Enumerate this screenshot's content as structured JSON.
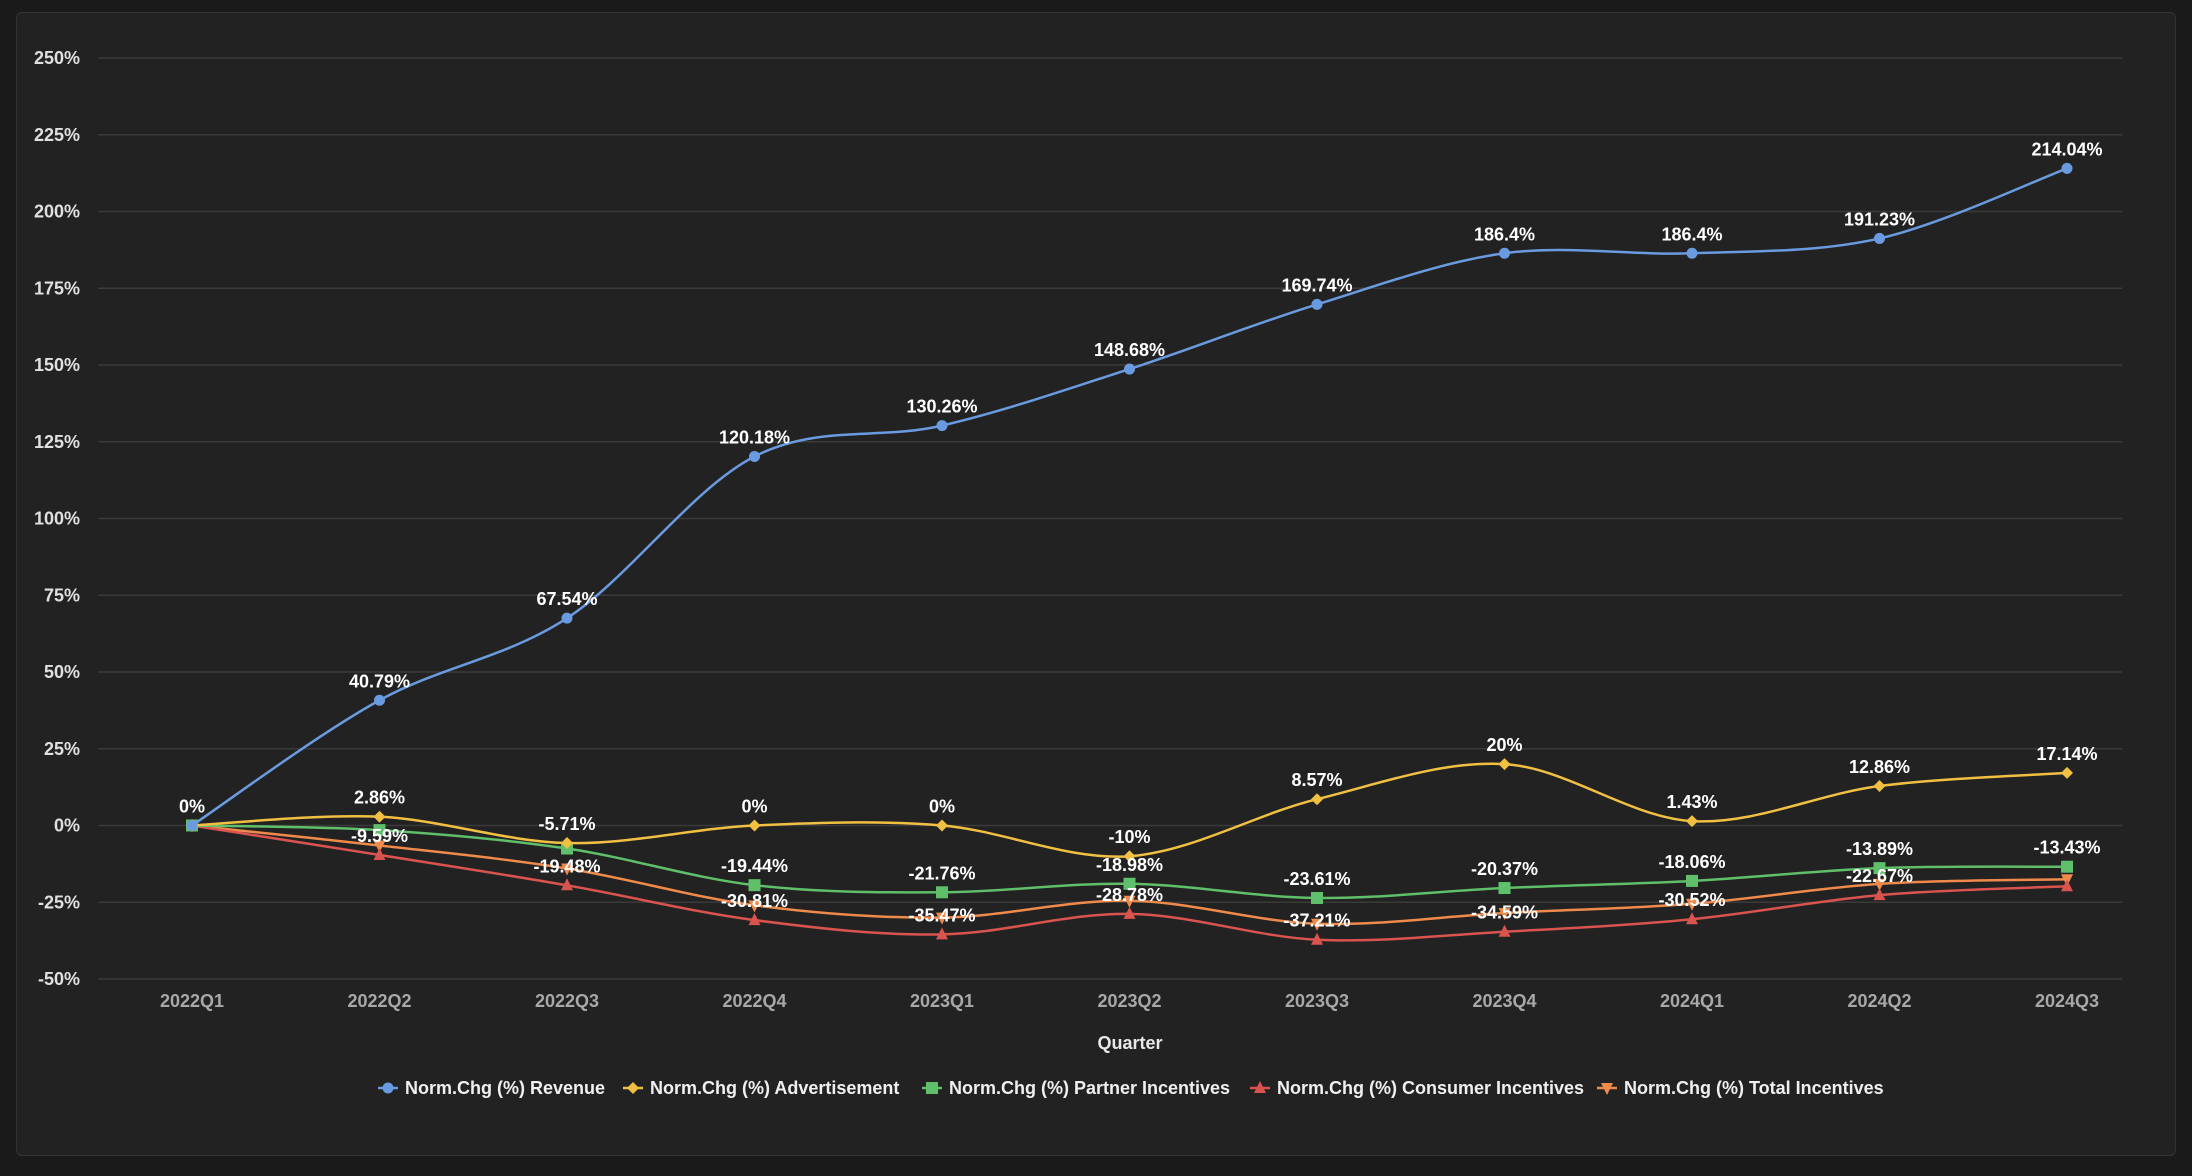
{
  "chart_data": {
    "type": "line",
    "title": "",
    "xlabel": "Quarter",
    "ylabel": "",
    "ylim": [
      -50,
      250
    ],
    "yticks": [
      -50,
      -25,
      0,
      25,
      50,
      75,
      100,
      125,
      150,
      175,
      200,
      225,
      250
    ],
    "ytick_labels": [
      "-50%",
      "-25%",
      "0%",
      "25%",
      "50%",
      "75%",
      "100%",
      "125%",
      "150%",
      "175%",
      "200%",
      "225%",
      "250%"
    ],
    "grid": true,
    "legend_position": "bottom-center",
    "categories": [
      "2022Q1",
      "2022Q2",
      "2022Q3",
      "2022Q4",
      "2023Q1",
      "2023Q2",
      "2023Q3",
      "2023Q4",
      "2024Q1",
      "2024Q2",
      "2024Q3"
    ],
    "series": [
      {
        "name": "Norm.Chg (%) Revenue",
        "color": "#6a9be0",
        "marker": "circle",
        "values": [
          0,
          40.79,
          67.54,
          120.18,
          130.26,
          148.68,
          169.74,
          186.4,
          186.4,
          191.23,
          214.04
        ],
        "labels": [
          "0%",
          "40.79%",
          "67.54%",
          "120.18%",
          "130.26%",
          "148.68%",
          "169.74%",
          "186.4%",
          "186.4%",
          "191.23%",
          "214.04%"
        ],
        "label_show": [
          true,
          true,
          true,
          true,
          true,
          true,
          true,
          true,
          true,
          true,
          true
        ]
      },
      {
        "name": "Norm.Chg (%) Advertisement",
        "color": "#f1c043",
        "marker": "diamond",
        "values": [
          0,
          2.86,
          -5.71,
          0,
          0,
          -10,
          8.57,
          20,
          1.43,
          12.86,
          17.14
        ],
        "labels": [
          "0%",
          "2.86%",
          "-5.71%",
          "0%",
          "0%",
          "-10%",
          "8.57%",
          "20%",
          "1.43%",
          "12.86%",
          "17.14%"
        ],
        "label_show": [
          false,
          true,
          true,
          true,
          true,
          true,
          true,
          true,
          true,
          true,
          true
        ]
      },
      {
        "name": "Norm.Chg (%) Partner Incentives",
        "color": "#5fbf6a",
        "marker": "square",
        "values": [
          0,
          -1.5,
          -7.5,
          -19.44,
          -21.76,
          -18.98,
          -23.61,
          -20.37,
          -18.06,
          -13.89,
          -13.43
        ],
        "labels": [
          "",
          "",
          "",
          "-19.44%",
          "-21.76%",
          "-18.98%",
          "-23.61%",
          "-20.37%",
          "-18.06%",
          "-13.89%",
          "-13.43%"
        ],
        "label_show": [
          false,
          false,
          false,
          true,
          true,
          true,
          true,
          true,
          true,
          true,
          true
        ]
      },
      {
        "name": "Norm.Chg (%) Consumer Incentives",
        "color": "#d9534f",
        "marker": "triangle",
        "values": [
          0,
          -9.59,
          -19.48,
          -30.81,
          -35.47,
          -28.78,
          -37.21,
          -34.59,
          -30.52,
          -22.67,
          -19.8
        ],
        "labels": [
          "",
          "-9.59%",
          "-19.48%",
          "-30.81%",
          "-35.47%",
          "-28.78%",
          "-37.21%",
          "-34.59%",
          "-30.52%",
          "-22.67%",
          ""
        ],
        "label_show": [
          false,
          true,
          true,
          true,
          true,
          true,
          true,
          true,
          true,
          true,
          false
        ]
      },
      {
        "name": "Norm.Chg (%) Total Incentives",
        "color": "#f08a4b",
        "marker": "triangle-down",
        "values": [
          0,
          -6.5,
          -14,
          -26,
          -30,
          -24.5,
          -32,
          -28.5,
          -25.5,
          -19,
          -17.5
        ],
        "labels": [
          "",
          "",
          "",
          "",
          "",
          "",
          "",
          "",
          "",
          "",
          ""
        ],
        "label_show": [
          false,
          false,
          false,
          false,
          false,
          false,
          false,
          false,
          false,
          false,
          false
        ]
      }
    ]
  }
}
